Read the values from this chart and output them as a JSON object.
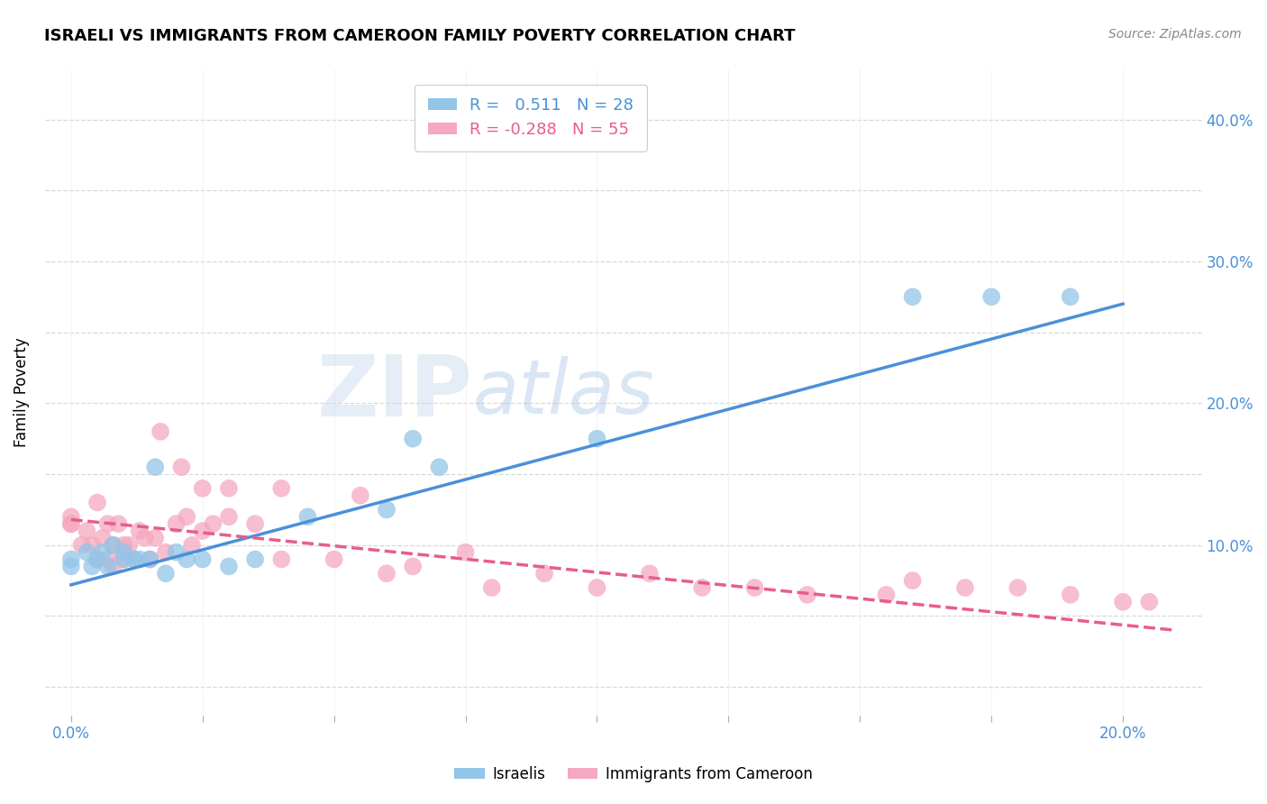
{
  "title": "ISRAELI VS IMMIGRANTS FROM CAMEROON FAMILY POVERTY CORRELATION CHART",
  "source": "Source: ZipAtlas.com",
  "xlabel_ticks": [
    0.0,
    0.025,
    0.05,
    0.075,
    0.1,
    0.125,
    0.15,
    0.175,
    0.2
  ],
  "xlabel_labels": [
    "0.0%",
    "",
    "",
    "",
    "",
    "",
    "",
    "",
    "20.0%"
  ],
  "ylabel": "Family Poverty",
  "ylabel_ticks": [
    0.0,
    0.05,
    0.1,
    0.15,
    0.2,
    0.25,
    0.3,
    0.35,
    0.4
  ],
  "ylabel_labels": [
    "",
    "",
    "10.0%",
    "",
    "20.0%",
    "",
    "30.0%",
    "",
    "40.0%"
  ],
  "xlim": [
    -0.005,
    0.215
  ],
  "ylim": [
    -0.02,
    0.435
  ],
  "background_color": "#ffffff",
  "grid_color": "#d8d8d8",
  "watermark": "ZIPatlas",
  "israeli_color": "#92c5e8",
  "cameroon_color": "#f5a8c0",
  "israeli_line_color": "#4a90d9",
  "cameroon_line_color": "#e85d8a",
  "R_israeli": 0.511,
  "N_israeli": 28,
  "R_cameroon": -0.288,
  "N_cameroon": 55,
  "israeli_x": [
    0.0,
    0.0,
    0.003,
    0.004,
    0.005,
    0.006,
    0.007,
    0.008,
    0.01,
    0.01,
    0.012,
    0.013,
    0.015,
    0.016,
    0.018,
    0.02,
    0.022,
    0.025,
    0.03,
    0.035,
    0.045,
    0.06,
    0.065,
    0.07,
    0.1,
    0.16,
    0.175,
    0.19
  ],
  "israeli_y": [
    0.09,
    0.085,
    0.095,
    0.085,
    0.09,
    0.095,
    0.085,
    0.1,
    0.09,
    0.095,
    0.09,
    0.09,
    0.09,
    0.155,
    0.08,
    0.095,
    0.09,
    0.09,
    0.085,
    0.09,
    0.12,
    0.125,
    0.175,
    0.155,
    0.175,
    0.275,
    0.275,
    0.275
  ],
  "cameroon_x": [
    0.0,
    0.0,
    0.0,
    0.002,
    0.003,
    0.004,
    0.005,
    0.005,
    0.006,
    0.007,
    0.007,
    0.008,
    0.008,
    0.009,
    0.01,
    0.01,
    0.011,
    0.012,
    0.013,
    0.014,
    0.015,
    0.016,
    0.017,
    0.018,
    0.02,
    0.021,
    0.022,
    0.023,
    0.025,
    0.025,
    0.027,
    0.03,
    0.03,
    0.035,
    0.04,
    0.04,
    0.05,
    0.055,
    0.06,
    0.065,
    0.075,
    0.08,
    0.09,
    0.1,
    0.11,
    0.12,
    0.13,
    0.14,
    0.155,
    0.16,
    0.17,
    0.18,
    0.19,
    0.2,
    0.205
  ],
  "cameroon_y": [
    0.115,
    0.115,
    0.12,
    0.1,
    0.11,
    0.1,
    0.09,
    0.13,
    0.105,
    0.09,
    0.115,
    0.085,
    0.1,
    0.115,
    0.09,
    0.1,
    0.1,
    0.09,
    0.11,
    0.105,
    0.09,
    0.105,
    0.18,
    0.095,
    0.115,
    0.155,
    0.12,
    0.1,
    0.11,
    0.14,
    0.115,
    0.12,
    0.14,
    0.115,
    0.09,
    0.14,
    0.09,
    0.135,
    0.08,
    0.085,
    0.095,
    0.07,
    0.08,
    0.07,
    0.08,
    0.07,
    0.07,
    0.065,
    0.065,
    0.075,
    0.07,
    0.07,
    0.065,
    0.06,
    0.06
  ],
  "israeli_line_x": [
    0.0,
    0.2
  ],
  "israeli_line_y": [
    0.072,
    0.27
  ],
  "cameroon_line_x": [
    0.0,
    0.21
  ],
  "cameroon_line_y": [
    0.118,
    0.04
  ]
}
